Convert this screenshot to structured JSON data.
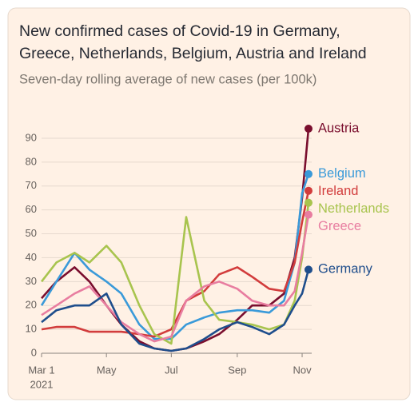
{
  "chart_data": {
    "type": "line",
    "title": "New confirmed cases of Covid-19 in Germany, Greece, Netherlands, Belgium, Austria and Ireland",
    "subtitle": "Seven-day rolling average of new cases (per 100k)",
    "x": [
      "2021-03-01",
      "2021-03-15",
      "2021-04-01",
      "2021-04-15",
      "2021-05-01",
      "2021-05-15",
      "2021-06-01",
      "2021-06-15",
      "2021-07-01",
      "2021-07-15",
      "2021-08-01",
      "2021-08-15",
      "2021-09-01",
      "2021-09-15",
      "2021-10-01",
      "2021-10-15",
      "2021-10-25",
      "2021-11-01",
      "2021-11-07"
    ],
    "series": [
      {
        "name": "Austria",
        "color": "#7a0e2e",
        "values": [
          23,
          30,
          36,
          30,
          20,
          12,
          5,
          2,
          1,
          2,
          5,
          8,
          14,
          20,
          20,
          25,
          40,
          65,
          94
        ]
      },
      {
        "name": "Belgium",
        "color": "#3a9ad9",
        "values": [
          20,
          30,
          42,
          35,
          30,
          25,
          12,
          6,
          6,
          12,
          15,
          17,
          18,
          18,
          17,
          22,
          38,
          67,
          75
        ]
      },
      {
        "name": "Ireland",
        "color": "#d23c3c",
        "values": [
          10,
          11,
          11,
          9,
          9,
          9,
          8,
          7,
          10,
          22,
          26,
          33,
          36,
          32,
          27,
          26,
          38,
          55,
          68
        ]
      },
      {
        "name": "Netherlands",
        "color": "#a8c44e",
        "values": [
          30,
          38,
          42,
          38,
          45,
          38,
          20,
          8,
          4,
          57,
          22,
          14,
          13,
          12,
          10,
          12,
          22,
          40,
          63
        ]
      },
      {
        "name": "Greece",
        "color": "#e87da0",
        "values": [
          16,
          20,
          25,
          28,
          20,
          13,
          8,
          5,
          7,
          22,
          28,
          30,
          27,
          22,
          20,
          20,
          26,
          42,
          58
        ]
      },
      {
        "name": "Germany",
        "color": "#1f4e8c",
        "values": [
          13,
          18,
          20,
          20,
          25,
          12,
          4,
          2,
          1,
          2,
          6,
          10,
          13,
          11,
          8,
          12,
          20,
          25,
          35
        ]
      }
    ],
    "xlim": [
      "2021-03-01",
      "2021-11-10"
    ],
    "xticks": [
      {
        "value": "2021-03-01",
        "label": "Mar 1"
      },
      {
        "value": "2021-05-01",
        "label": "May"
      },
      {
        "value": "2021-07-01",
        "label": "Jul"
      },
      {
        "value": "2021-09-01",
        "label": "Sep"
      },
      {
        "value": "2021-11-01",
        "label": "Nov"
      }
    ],
    "x_year_label": "2021",
    "ylim": [
      0,
      95
    ],
    "yticks": [
      0,
      10,
      20,
      30,
      40,
      50,
      60,
      70,
      80,
      90
    ],
    "grid": true
  }
}
